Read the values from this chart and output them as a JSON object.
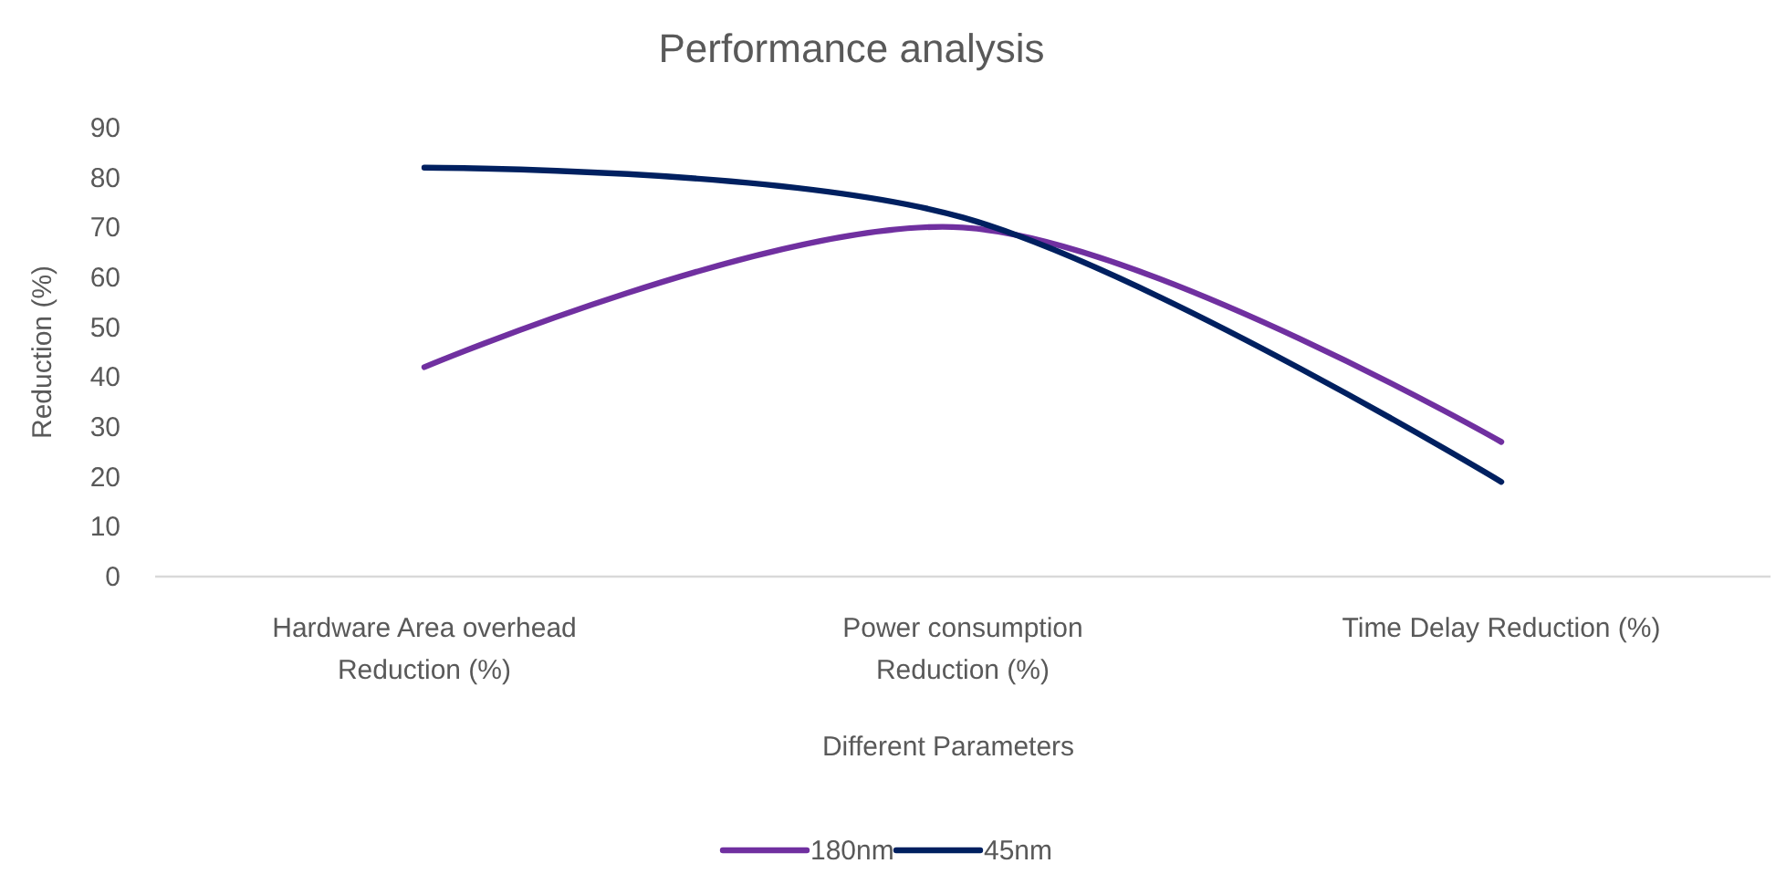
{
  "chart_data": {
    "type": "line",
    "title": "Performance analysis",
    "xlabel": "Different Parameters",
    "ylabel": "Reduction (%)",
    "categories": [
      "Hardware Area overhead Reduction (%)",
      "Power consumption Reduction (%)",
      "Time Delay Reduction (%)"
    ],
    "series": [
      {
        "name": "180nm",
        "color": "#7030a0",
        "values": [
          42,
          70,
          27
        ]
      },
      {
        "name": "45nm",
        "color": "#002060",
        "values": [
          82,
          72,
          19
        ]
      }
    ],
    "ylim": [
      0,
      90
    ],
    "yticks": [
      0,
      10,
      20,
      30,
      40,
      50,
      60,
      70,
      80,
      90
    ],
    "grid": false,
    "legend": "bottom",
    "marker": "none",
    "line_style": "solid"
  }
}
